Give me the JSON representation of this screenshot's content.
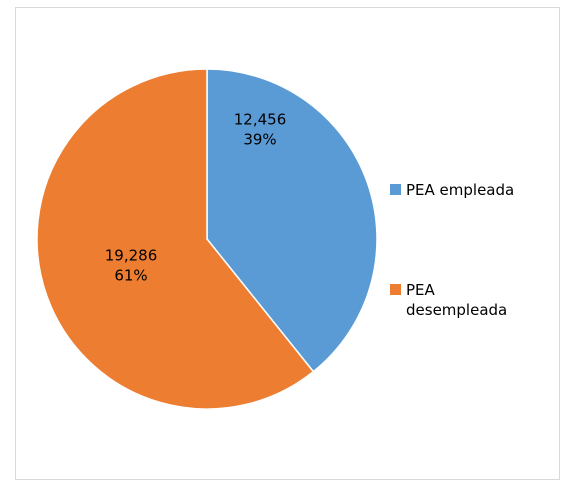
{
  "chart_data": {
    "type": "pie",
    "categories": [
      "PEA empleada",
      "PEA desempleada"
    ],
    "values": [
      12456,
      19286
    ],
    "value_labels": [
      "12,456",
      "19,286"
    ],
    "percent_labels": [
      "39%",
      "61%"
    ],
    "colors": [
      "#5b9bd5",
      "#ed7d31"
    ],
    "legend": "right"
  }
}
